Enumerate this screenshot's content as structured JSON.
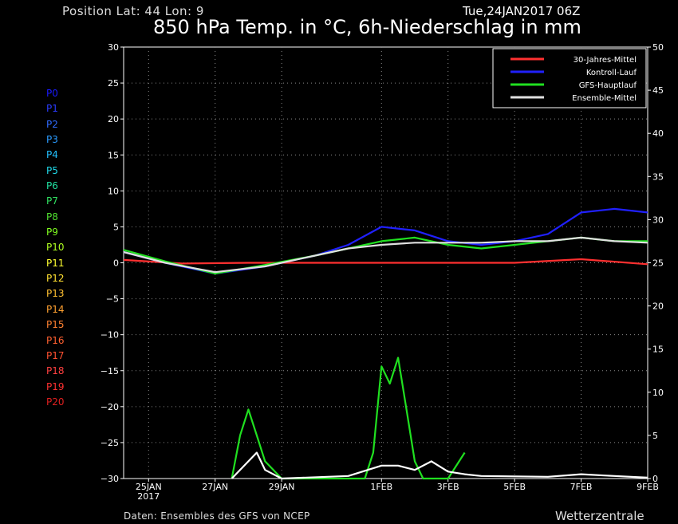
{
  "header": {
    "position": "Position   Lat: 44 Lon: 9",
    "date": "Tue,24JAN2017 06Z",
    "title": "850 hPa Temp. in °C, 6h-Niederschlag in mm"
  },
  "members": [
    {
      "label": "P0",
      "color": "#1a1aff"
    },
    {
      "label": "P1",
      "color": "#2a3cff"
    },
    {
      "label": "P2",
      "color": "#2f6bff"
    },
    {
      "label": "P3",
      "color": "#2a9bff"
    },
    {
      "label": "P4",
      "color": "#22c0ff"
    },
    {
      "label": "P5",
      "color": "#20d8e8"
    },
    {
      "label": "P6",
      "color": "#20e0a0"
    },
    {
      "label": "P7",
      "color": "#30e060"
    },
    {
      "label": "P8",
      "color": "#50e030"
    },
    {
      "label": "P9",
      "color": "#80ff20"
    },
    {
      "label": "P10",
      "color": "#b0ff20"
    },
    {
      "label": "P11",
      "color": "#ffff30"
    },
    {
      "label": "P12",
      "color": "#ffe030"
    },
    {
      "label": "P13",
      "color": "#ffc030"
    },
    {
      "label": "P14",
      "color": "#ffa030"
    },
    {
      "label": "P15",
      "color": "#ff8030"
    },
    {
      "label": "P16",
      "color": "#ff6030"
    },
    {
      "label": "P17",
      "color": "#ff5030"
    },
    {
      "label": "P18",
      "color": "#ff4040"
    },
    {
      "label": "P19",
      "color": "#ff3030"
    },
    {
      "label": "P20",
      "color": "#e02020"
    }
  ],
  "footer": {
    "source": "Daten: Ensembles des GFS von NCEP",
    "brand": "Wetterzentrale"
  },
  "chart_data": {
    "type": "line",
    "x_range": [
      "2017-01-24T06:00",
      "2017-02-09T00:00"
    ],
    "y_left": {
      "min": -30,
      "max": 30,
      "ticks": [
        30,
        25,
        20,
        15,
        10,
        5,
        0,
        -5,
        -10,
        -15,
        -20,
        -25,
        -30
      ]
    },
    "y_right": {
      "min": 0,
      "max": 50,
      "ticks": [
        50,
        45,
        40,
        35,
        30,
        25,
        20,
        15,
        10,
        5,
        0
      ]
    },
    "x_ticks": [
      {
        "date": "2017-01-25",
        "label": "25JAN",
        "sub": "2017"
      },
      {
        "date": "2017-01-27",
        "label": "27JAN",
        "sub": ""
      },
      {
        "date": "2017-01-29",
        "label": "29JAN",
        "sub": ""
      },
      {
        "date": "2017-02-01",
        "label": "1FEB",
        "sub": ""
      },
      {
        "date": "2017-02-03",
        "label": "3FEB",
        "sub": ""
      },
      {
        "date": "2017-02-05",
        "label": "5FEB",
        "sub": ""
      },
      {
        "date": "2017-02-07",
        "label": "7FEB",
        "sub": ""
      },
      {
        "date": "2017-02-09",
        "label": "9FEB",
        "sub": ""
      }
    ],
    "grid": true,
    "legend_position": "top-right",
    "series": [
      {
        "name": "30-Jahres-Mittel",
        "color": "#ff3030",
        "axis": "left",
        "x": [
          "2017-01-24T06:00",
          "2017-01-26T00:00",
          "2017-01-28T00:00",
          "2017-01-30T00:00",
          "2017-02-01T00:00",
          "2017-02-03T00:00",
          "2017-02-05T00:00",
          "2017-02-07T00:00",
          "2017-02-09T00:00"
        ],
        "y": [
          0.4,
          -0.1,
          0,
          0,
          0,
          0,
          0,
          0.5,
          -0.2
        ]
      },
      {
        "name": "Kontroll-Lauf",
        "color": "#2020ff",
        "axis": "left",
        "x": [
          "2017-01-24T06:00",
          "2017-01-25T12:00",
          "2017-01-27T00:00",
          "2017-01-28T12:00",
          "2017-01-30T00:00",
          "2017-01-31T00:00",
          "2017-02-01T00:00",
          "2017-02-02T00:00",
          "2017-02-03T00:00",
          "2017-02-04T00:00",
          "2017-02-05T00:00",
          "2017-02-06T00:00",
          "2017-02-07T00:00",
          "2017-02-08T00:00",
          "2017-02-09T00:00"
        ],
        "y": [
          1.5,
          0,
          -1.5,
          -0.5,
          1,
          2.5,
          5,
          4.5,
          3,
          2.5,
          3,
          4,
          7,
          7.5,
          7
        ]
      },
      {
        "name": "GFS-Hauptlauf",
        "color": "#20e020",
        "axis": "left",
        "x": [
          "2017-01-24T06:00",
          "2017-01-25T12:00",
          "2017-01-27T00:00",
          "2017-01-28T12:00",
          "2017-01-30T00:00",
          "2017-01-31T00:00",
          "2017-02-01T00:00",
          "2017-02-02T00:00",
          "2017-02-03T00:00",
          "2017-02-04T00:00",
          "2017-02-05T00:00",
          "2017-02-06T00:00",
          "2017-02-07T00:00",
          "2017-02-08T00:00",
          "2017-02-09T00:00"
        ],
        "y": [
          1.8,
          0.2,
          -1.5,
          -0.3,
          1,
          2,
          3,
          3.5,
          2.5,
          2,
          2.5,
          3,
          3.5,
          3,
          3
        ]
      },
      {
        "name": "Ensemble-Mittel",
        "color": "#e0e0e0",
        "axis": "left",
        "x": [
          "2017-01-24T06:00",
          "2017-01-25T12:00",
          "2017-01-27T00:00",
          "2017-01-28T12:00",
          "2017-01-30T00:00",
          "2017-01-31T00:00",
          "2017-02-01T00:00",
          "2017-02-02T00:00",
          "2017-02-03T00:00",
          "2017-02-04T00:00",
          "2017-02-05T00:00",
          "2017-02-06T00:00",
          "2017-02-07T00:00",
          "2017-02-08T00:00",
          "2017-02-09T00:00"
        ],
        "y": [
          1.5,
          0,
          -1.3,
          -0.5,
          1,
          2,
          2.5,
          2.8,
          2.8,
          2.8,
          3,
          3,
          3.5,
          3,
          2.8
        ]
      },
      {
        "name": "GFS-Hauptlauf Niederschlag",
        "color": "#20e020",
        "axis": "right",
        "x": [
          "2017-01-27T12:00",
          "2017-01-27T18:00",
          "2017-01-28T00:00",
          "2017-01-28T06:00",
          "2017-01-28T12:00",
          "2017-01-29T00:00",
          "2017-01-31T12:00",
          "2017-01-31T18:00",
          "2017-02-01T00:00",
          "2017-02-01T06:00",
          "2017-02-01T12:00",
          "2017-02-01T18:00",
          "2017-02-02T00:00",
          "2017-02-02T06:00",
          "2017-02-03T00:00",
          "2017-02-03T12:00"
        ],
        "y": [
          0,
          5,
          8,
          5,
          2,
          0,
          0,
          3,
          13,
          11,
          14,
          8,
          2,
          0,
          0,
          3
        ]
      },
      {
        "name": "Ensemble-Mittel Niederschlag",
        "color": "#ffffff",
        "axis": "right",
        "x": [
          "2017-01-27T12:00",
          "2017-01-28T00:00",
          "2017-01-28T06:00",
          "2017-01-28T12:00",
          "2017-01-29T00:00",
          "2017-01-31T00:00",
          "2017-02-01T00:00",
          "2017-02-01T12:00",
          "2017-02-02T00:00",
          "2017-02-02T12:00",
          "2017-02-03T00:00",
          "2017-02-03T12:00",
          "2017-02-04T00:00",
          "2017-02-06T00:00",
          "2017-02-07T00:00",
          "2017-02-08T00:00",
          "2017-02-09T00:00"
        ],
        "y": [
          0,
          2,
          3,
          1,
          0,
          0.3,
          1.5,
          1.5,
          1,
          2,
          0.8,
          0.5,
          0.3,
          0.2,
          0.5,
          0.3,
          0.1
        ]
      }
    ]
  }
}
